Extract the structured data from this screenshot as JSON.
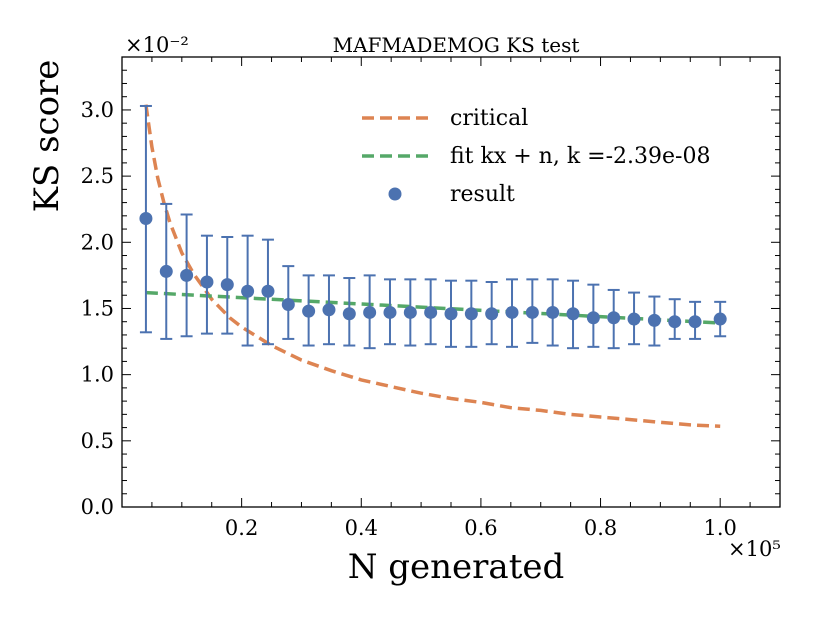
{
  "chart_data": {
    "type": "scatter",
    "title": "MAFMADEMOG KS test",
    "xlabel": "N generated",
    "ylabel": "KS score",
    "x_multiplier": "×10⁵",
    "y_multiplier": "×10⁻²",
    "xlim": [
      0.0,
      1.1
    ],
    "ylim": [
      0.0,
      3.4
    ],
    "xticks": [
      0.2,
      0.4,
      0.6,
      0.8,
      1.0
    ],
    "xtick_labels": [
      "0.2",
      "0.4",
      "0.6",
      "0.8",
      "1.0"
    ],
    "yticks": [
      0.0,
      0.5,
      1.0,
      1.5,
      2.0,
      2.5,
      3.0
    ],
    "ytick_labels": [
      "0.0",
      "0.5",
      "1.0",
      "1.5",
      "2.0",
      "2.5",
      "3.0"
    ],
    "grid": false,
    "legend_position": "top-right",
    "legend": [
      "critical",
      "fit kx + n, k =-2.39e-08",
      "result"
    ],
    "series": [
      {
        "name": "critical",
        "kind": "dashed-line",
        "color": "#dd8452",
        "x": [
          0.04,
          0.05,
          0.06,
          0.07,
          0.08,
          0.1,
          0.12,
          0.15,
          0.18,
          0.2,
          0.25,
          0.3,
          0.35,
          0.4,
          0.45,
          0.5,
          0.55,
          0.6,
          0.65,
          0.7,
          0.75,
          0.8,
          0.85,
          0.9,
          0.95,
          1.0
        ],
        "y": [
          3.04,
          2.72,
          2.48,
          2.3,
          2.15,
          1.92,
          1.76,
          1.57,
          1.43,
          1.36,
          1.22,
          1.11,
          1.03,
          0.96,
          0.91,
          0.86,
          0.82,
          0.79,
          0.75,
          0.73,
          0.7,
          0.68,
          0.66,
          0.64,
          0.62,
          0.61
        ]
      },
      {
        "name": "fit kx + n, k =-2.39e-08",
        "kind": "dashed-line",
        "color": "#55a868",
        "x": [
          0.04,
          1.0
        ],
        "y": [
          1.62,
          1.39
        ]
      },
      {
        "name": "result",
        "kind": "points-with-errorbars",
        "color": "#4c72b0",
        "x": [
          0.04,
          0.074,
          0.108,
          0.142,
          0.176,
          0.21,
          0.244,
          0.278,
          0.312,
          0.346,
          0.38,
          0.414,
          0.448,
          0.482,
          0.516,
          0.55,
          0.584,
          0.618,
          0.652,
          0.686,
          0.72,
          0.754,
          0.788,
          0.822,
          0.856,
          0.89,
          0.924,
          0.958,
          1.0
        ],
        "y": [
          2.18,
          1.78,
          1.75,
          1.7,
          1.68,
          1.63,
          1.63,
          1.53,
          1.48,
          1.49,
          1.46,
          1.47,
          1.47,
          1.47,
          1.47,
          1.46,
          1.46,
          1.46,
          1.47,
          1.47,
          1.47,
          1.46,
          1.43,
          1.43,
          1.42,
          1.41,
          1.4,
          1.4,
          1.42
        ],
        "yerr_low": [
          1.32,
          1.27,
          1.29,
          1.31,
          1.31,
          1.22,
          1.23,
          1.27,
          1.22,
          1.23,
          1.22,
          1.2,
          1.23,
          1.22,
          1.23,
          1.21,
          1.21,
          1.23,
          1.21,
          1.24,
          1.22,
          1.2,
          1.21,
          1.2,
          1.23,
          1.22,
          1.27,
          1.27,
          1.29
        ],
        "yerr_high": [
          3.03,
          2.29,
          2.21,
          2.05,
          2.04,
          2.05,
          2.02,
          1.82,
          1.75,
          1.75,
          1.73,
          1.75,
          1.72,
          1.72,
          1.72,
          1.71,
          1.71,
          1.7,
          1.72,
          1.72,
          1.72,
          1.71,
          1.68,
          1.64,
          1.62,
          1.59,
          1.57,
          1.55,
          1.55
        ]
      }
    ]
  }
}
